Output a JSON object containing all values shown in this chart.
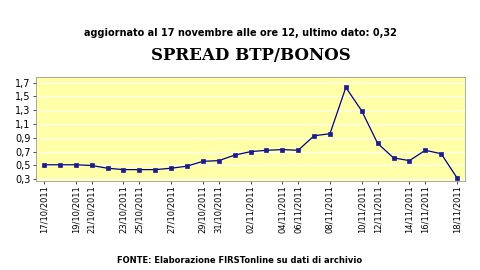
{
  "title": "SPREAD BTP/BONOS",
  "subtitle": "aggiornato al 17 novembre alle ore 12, ultimo dato: 0,32",
  "source": "FONTE: Elaborazione FIRSTonline su dati di archivio",
  "x_labels": [
    "17/10/2011",
    "19/10/2011",
    "21/10/2011",
    "23/10/2011",
    "25/10/2011",
    "27/10/2011",
    "29/10/2011",
    "31/10/2011",
    "02/11/2011",
    "04/11/2011",
    "06/11/2011",
    "08/11/2011",
    "10/11/2011",
    "12/11/2011",
    "14/11/2011",
    "16/11/2011",
    "18/11/2011"
  ],
  "y_values": [
    0.51,
    0.51,
    0.51,
    0.5,
    0.46,
    0.44,
    0.44,
    0.44,
    0.46,
    0.49,
    0.56,
    0.57,
    0.65,
    0.7,
    0.72,
    0.73,
    0.72,
    0.93,
    0.96,
    1.63,
    1.29,
    0.82,
    0.61,
    0.57,
    0.72,
    0.67,
    0.32
  ],
  "yticks": [
    0.3,
    0.5,
    0.7,
    0.9,
    1.1,
    1.3,
    1.5,
    1.7
  ],
  "ylim": [
    0.27,
    1.78
  ],
  "line_color": "#00008B",
  "marker_color": "#1C1C8C",
  "bg_color": "#FFFFFF",
  "plot_bg_color": "#FFFFA8",
  "title_fontsize": 12,
  "subtitle_fontsize": 7,
  "source_fontsize": 6,
  "tick_fontsize": 6,
  "ytick_fontsize": 7
}
